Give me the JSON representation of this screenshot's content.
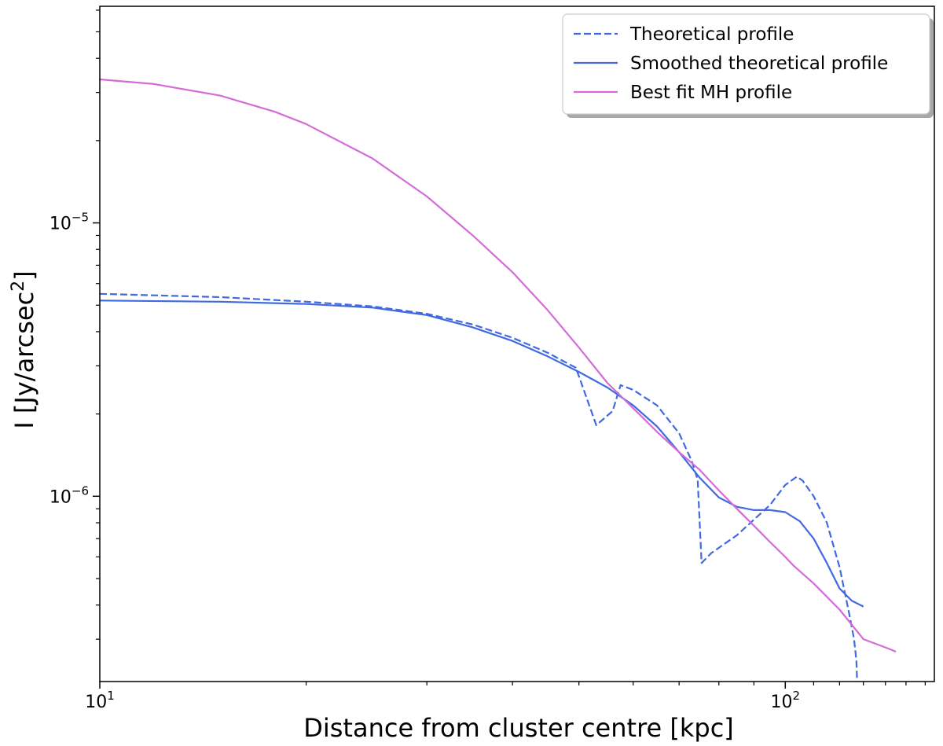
{
  "chart_data": {
    "type": "line",
    "xlabel": "Distance from cluster centre  [kpc]",
    "ylabel": "I [Jy/arcsec",
    "ylabel_sup": "2",
    "ylabel_close": "]",
    "x_scale": "log",
    "y_scale": "log",
    "xlim": [
      10,
      165
    ],
    "ylim": [
      2.1e-07,
      6.2e-05
    ],
    "grid": false,
    "legend_position": "top-right",
    "x_ticks": [
      {
        "value": 10,
        "base": "10",
        "exp": "1"
      },
      {
        "value": 100,
        "base": "10",
        "exp": "2"
      }
    ],
    "y_ticks": [
      {
        "value": 1e-05,
        "base": "10",
        "exp": "−5"
      },
      {
        "value": 1e-06,
        "base": "10",
        "exp": "−6"
      }
    ],
    "series": [
      {
        "name": "Theoretical profile",
        "color": "#4169e1",
        "style": "dashed",
        "x": [
          10,
          15,
          20,
          25,
          30,
          35,
          40,
          45,
          49.5,
          53,
          56,
          57.5,
          60,
          65,
          70,
          73,
          74.5,
          75.5,
          78,
          85,
          95,
          100,
          104,
          106,
          110,
          115,
          120,
          124,
          126,
          127,
          127.3
        ],
        "y": [
          5.5e-06,
          5.35e-06,
          5.15e-06,
          4.95e-06,
          4.65e-06,
          4.25e-06,
          3.8e-06,
          3.35e-06,
          2.95e-06,
          1.82e-06,
          2.05e-06,
          2.55e-06,
          2.45e-06,
          2.15e-06,
          1.7e-06,
          1.35e-06,
          1.15e-06,
          5.7e-07,
          6.2e-07,
          7.2e-07,
          9.3e-07,
          1.1e-06,
          1.18e-06,
          1.14e-06,
          1e-06,
          8e-07,
          5.5e-07,
          3.7e-07,
          3e-07,
          2.5e-07,
          2.1e-07
        ]
      },
      {
        "name": "Smoothed theoretical profile",
        "color": "#4169e1",
        "style": "solid",
        "x": [
          10,
          15,
          20,
          25,
          30,
          35,
          40,
          45,
          50,
          55,
          60,
          65,
          70,
          75,
          80,
          85,
          90,
          95,
          100,
          105,
          110,
          115,
          120,
          125,
          130
        ],
        "y": [
          5.2e-06,
          5.15e-06,
          5.05e-06,
          4.9e-06,
          4.6e-06,
          4.15e-06,
          3.7e-06,
          3.25e-06,
          2.85e-06,
          2.5e-06,
          2.15e-06,
          1.8e-06,
          1.45e-06,
          1.17e-06,
          9.9e-07,
          9.15e-07,
          8.9e-07,
          8.9e-07,
          8.75e-07,
          8.1e-07,
          7e-07,
          5.7e-07,
          4.6e-07,
          4.15e-07,
          3.95e-07
        ]
      },
      {
        "name": "Best fit MH profile",
        "color": "#d46bd8",
        "style": "solid",
        "x": [
          10,
          12,
          15,
          18,
          20,
          25,
          30,
          35,
          40,
          45,
          50,
          55,
          60,
          65,
          70,
          75,
          80,
          85,
          90,
          95,
          100,
          103,
          110,
          120,
          130,
          140,
          145
        ],
        "y": [
          3.35e-05,
          3.22e-05,
          2.92e-05,
          2.55e-05,
          2.3e-05,
          1.72e-05,
          1.25e-05,
          9e-06,
          6.6e-06,
          4.8e-06,
          3.5e-06,
          2.6e-06,
          2.1e-06,
          1.72e-06,
          1.45e-06,
          1.25e-06,
          1.05e-06,
          9e-07,
          7.8e-07,
          6.8e-07,
          6e-07,
          5.55e-07,
          4.8e-07,
          3.85e-07,
          3e-07,
          2.8e-07,
          2.7e-07
        ]
      }
    ]
  }
}
